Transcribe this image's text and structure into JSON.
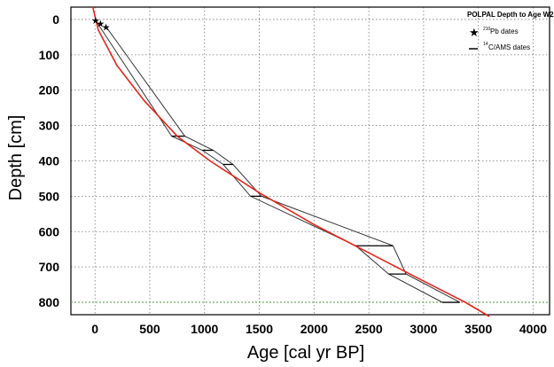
{
  "chart_data": {
    "type": "line",
    "title": "POLPAL Depth to Age W2",
    "xlabel": "Age [cal yr BP]",
    "ylabel": "Depth [cm]",
    "xlim": [
      -220,
      4150
    ],
    "ylim": [
      -35,
      835
    ],
    "y_inverted": true,
    "grid": true,
    "legend_position": "top-right",
    "x_ticks": [
      0,
      500,
      1000,
      1500,
      2000,
      2500,
      3000,
      3500,
      4000
    ],
    "y_ticks": [
      0,
      100,
      200,
      300,
      400,
      500,
      600,
      700,
      800
    ],
    "legend": {
      "pb_label": "Pb  dates",
      "pb_sup": "210",
      "c_label": "C/AMS dates",
      "c_sup": "14"
    },
    "series": [
      {
        "name": "Pb  dates",
        "kind": "star-markers",
        "points": [
          [
            5,
            2
          ],
          [
            50,
            12
          ],
          [
            100,
            22
          ]
        ]
      },
      {
        "name": "C/AMS dates",
        "kind": "date-ranges",
        "ranges": [
          {
            "depth": 330,
            "from": 700,
            "to": 820
          },
          {
            "depth": 370,
            "from": 980,
            "to": 1080
          },
          {
            "depth": 410,
            "from": 1170,
            "to": 1260
          },
          {
            "depth": 500,
            "from": 1420,
            "to": 1520
          },
          {
            "depth": 640,
            "from": 2380,
            "to": 2720
          },
          {
            "depth": 720,
            "from": 2680,
            "to": 2840
          },
          {
            "depth": 800,
            "from": 3170,
            "to": 3330
          }
        ]
      },
      {
        "kind": "min-bound",
        "points": [
          [
            0,
            0
          ],
          [
            700,
            330
          ],
          [
            980,
            370
          ],
          [
            1170,
            410
          ],
          [
            1420,
            500
          ],
          [
            2380,
            640
          ],
          [
            2680,
            720
          ],
          [
            3170,
            800
          ]
        ]
      },
      {
        "kind": "max-bound",
        "points": [
          [
            100,
            20
          ],
          [
            820,
            330
          ],
          [
            1080,
            370
          ],
          [
            1260,
            410
          ],
          [
            1520,
            500
          ],
          [
            2720,
            640
          ],
          [
            2840,
            720
          ],
          [
            3330,
            800
          ]
        ]
      },
      {
        "kind": "age-depth-model",
        "color": "#e8241c",
        "points": [
          [
            -20,
            -35
          ],
          [
            30,
            30
          ],
          [
            200,
            130
          ],
          [
            450,
            230
          ],
          [
            750,
            330
          ],
          [
            1050,
            400
          ],
          [
            1500,
            490
          ],
          [
            2000,
            580
          ],
          [
            2500,
            660
          ],
          [
            3000,
            740
          ],
          [
            3380,
            800
          ],
          [
            3600,
            840
          ]
        ]
      },
      {
        "kind": "reference-depth",
        "color": "#4a9a3a",
        "depth": 800
      }
    ]
  }
}
